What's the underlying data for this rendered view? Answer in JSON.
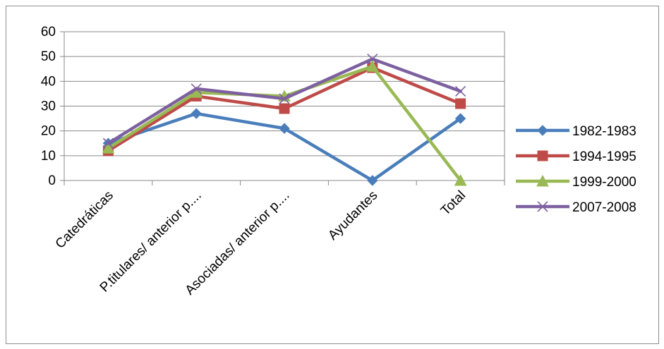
{
  "chart_data": {
    "type": "line",
    "title": "",
    "xlabel": "",
    "ylabel": "",
    "categories": [
      "Catedráticas",
      "P.titulares/ anterior p....",
      "Asociadas/ anterior p....",
      "Ayudantes",
      "Total"
    ],
    "ylim": [
      0,
      60
    ],
    "yticks": [
      0,
      10,
      20,
      30,
      40,
      50,
      60
    ],
    "grid": true,
    "legend_position": "right",
    "series": [
      {
        "name": "1982-1983",
        "values": [
          15,
          27,
          21,
          0,
          25
        ],
        "color": "#4a7ebb",
        "marker": "diamond"
      },
      {
        "name": "1994-1995",
        "values": [
          12,
          34,
          29,
          45.5,
          31
        ],
        "color": "#be4b48",
        "marker": "square"
      },
      {
        "name": "1999-2000",
        "values": [
          13,
          35.5,
          34,
          46,
          0
        ],
        "color": "#98b954",
        "marker": "triangle"
      },
      {
        "name": "2007-2008",
        "values": [
          15,
          37,
          33,
          49,
          36
        ],
        "color": "#7d60a0",
        "marker": "x"
      }
    ]
  }
}
